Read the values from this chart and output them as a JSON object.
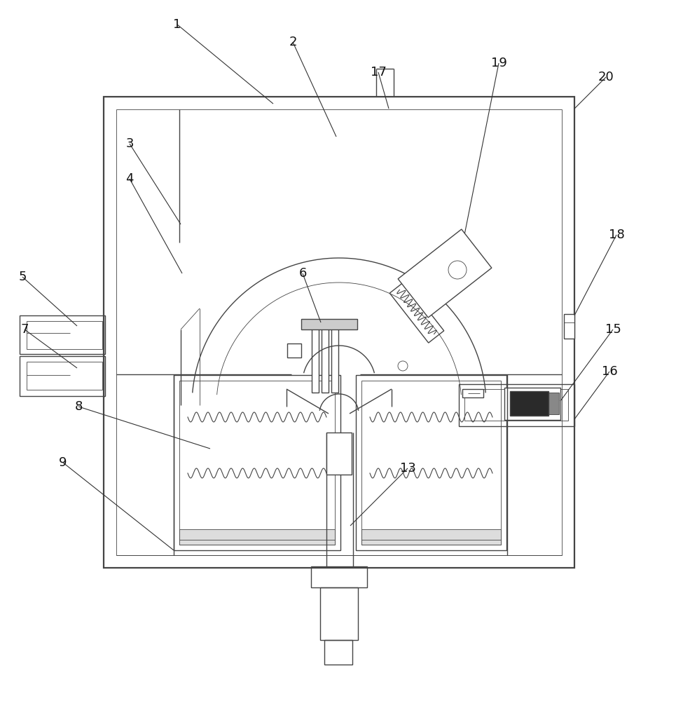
{
  "bg_color": "#ffffff",
  "lc": "#444444",
  "lc_dark": "#111111",
  "lw": 1.0,
  "lw_thin": 0.6,
  "lw_thick": 1.6,
  "figsize": [
    9.65,
    10.0
  ],
  "dpi": 100
}
